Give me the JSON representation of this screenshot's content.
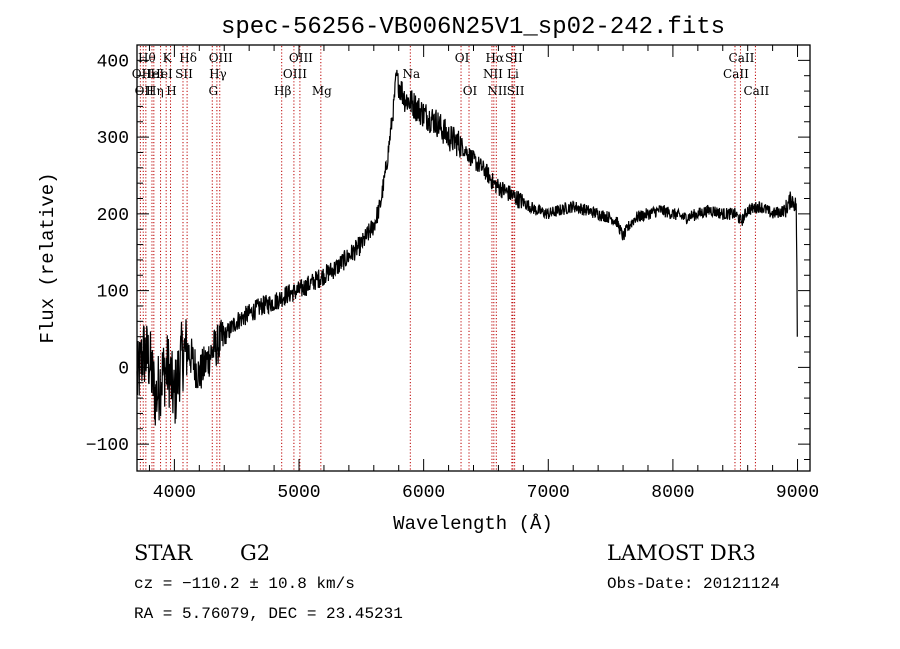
{
  "chart_data": {
    "type": "line",
    "title": "spec-56256-VB006N25V1_sp02-242.fits",
    "xlabel": "Wavelength (Å)",
    "ylabel": "Flux (relative)",
    "xlim": [
      3700,
      9100
    ],
    "ylim": [
      -135,
      420
    ],
    "x_ticks": [
      4000,
      5000,
      6000,
      7000,
      8000,
      9000
    ],
    "x_tick_labels": [
      "4000",
      "5000",
      "6000",
      "7000",
      "8000",
      "9000"
    ],
    "y_ticks": [
      -100,
      0,
      100,
      200,
      300,
      400
    ],
    "y_tick_labels": [
      "−100",
      "0",
      "100",
      "200",
      "300",
      "400"
    ],
    "grid": false,
    "line_color": "#000000",
    "marker_color": "#bb0000",
    "series": [
      {
        "name": "flux",
        "x": [
          3700,
          3750,
          3800,
          3850,
          3900,
          3950,
          4000,
          4050,
          4100,
          4200,
          4300,
          4400,
          4500,
          4600,
          4700,
          4800,
          4900,
          5000,
          5100,
          5200,
          5300,
          5400,
          5500,
          5600,
          5650,
          5700,
          5730,
          5760,
          5780,
          5800,
          5850,
          5900,
          6000,
          6100,
          6200,
          6300,
          6400,
          6500,
          6560,
          6600,
          6700,
          6800,
          6900,
          7000,
          7100,
          7200,
          7300,
          7400,
          7500,
          7550,
          7600,
          7650,
          7700,
          7800,
          7900,
          8000,
          8100,
          8200,
          8300,
          8400,
          8500,
          8550,
          8600,
          8700,
          8800,
          8900,
          8950,
          8990,
          9000
        ],
        "y": [
          -20,
          20,
          10,
          -40,
          -10,
          0,
          -40,
          10,
          25,
          -10,
          20,
          40,
          60,
          70,
          80,
          85,
          95,
          100,
          110,
          120,
          130,
          145,
          160,
          185,
          210,
          260,
          300,
          340,
          380,
          370,
          350,
          345,
          330,
          320,
          300,
          290,
          270,
          255,
          240,
          235,
          225,
          215,
          205,
          200,
          205,
          210,
          205,
          200,
          195,
          190,
          170,
          185,
          195,
          200,
          205,
          200,
          195,
          200,
          205,
          200,
          200,
          190,
          205,
          210,
          200,
          205,
          220,
          210,
          40
        ]
      }
    ],
    "line_markers": [
      {
        "wl": 3771,
        "label": "Hθ",
        "row": 0
      },
      {
        "wl": 3727,
        "label": "OII",
        "row": 1
      },
      {
        "wl": 3750,
        "label": "OII",
        "row": 2
      },
      {
        "wl": 3820,
        "label": "HeI",
        "row": 1
      },
      {
        "wl": 3835,
        "label": "Hη",
        "row": 2
      },
      {
        "wl": 3889,
        "label": "HeI",
        "row": 1
      },
      {
        "wl": 3934,
        "label": "K",
        "row": 0
      },
      {
        "wl": 3969,
        "label": "H",
        "row": 2
      },
      {
        "wl": 4069,
        "label": "SII",
        "row": 1
      },
      {
        "wl": 4102,
        "label": "Hδ",
        "row": 0
      },
      {
        "wl": 4304,
        "label": "G",
        "row": 2
      },
      {
        "wl": 4341,
        "label": "Hγ",
        "row": 1
      },
      {
        "wl": 4364,
        "label": "OIII",
        "row": 0
      },
      {
        "wl": 4861,
        "label": "Hβ",
        "row": 2
      },
      {
        "wl": 4959,
        "label": "OIII",
        "row": 1
      },
      {
        "wl": 5007,
        "label": "OIII",
        "row": 0
      },
      {
        "wl": 5175,
        "label": "Mg",
        "row": 2
      },
      {
        "wl": 5893,
        "label": "Na",
        "row": 1
      },
      {
        "wl": 6300,
        "label": "OI",
        "row": 0
      },
      {
        "wl": 6364,
        "label": "OI",
        "row": 2
      },
      {
        "wl": 6548,
        "label": "NII",
        "row": 1
      },
      {
        "wl": 6563,
        "label": "Hα",
        "row": 0
      },
      {
        "wl": 6583,
        "label": "NII",
        "row": 2
      },
      {
        "wl": 6708,
        "label": "Li",
        "row": 1
      },
      {
        "wl": 6716,
        "label": "SII",
        "row": 0
      },
      {
        "wl": 6730,
        "label": "SII",
        "row": 2
      },
      {
        "wl": 8498,
        "label": "CaII",
        "row": 1
      },
      {
        "wl": 8542,
        "label": "CaII",
        "row": 0
      },
      {
        "wl": 8662,
        "label": "CaII",
        "row": 2
      }
    ]
  },
  "info": {
    "object_class": "STAR",
    "subclass": "G2",
    "survey": "LAMOST DR3",
    "velocity": "cz = −110.2 ± 10.8 km/s",
    "obs_date": "Obs-Date: 20121124",
    "coordinates": "RA =   5.76079, DEC =  23.45231"
  }
}
